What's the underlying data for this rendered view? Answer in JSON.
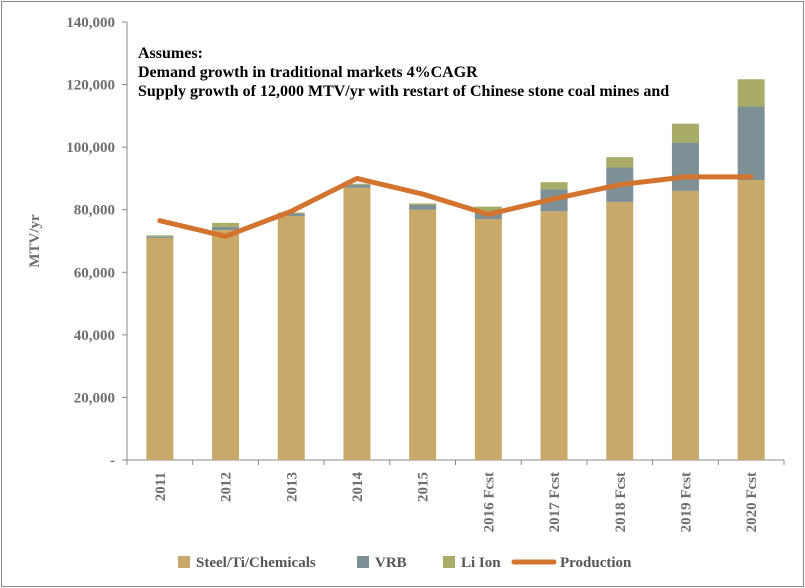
{
  "chart_data": {
    "type": "bar",
    "stacked": true,
    "categories": [
      "2011",
      "2012",
      "2013",
      "2014",
      "2015",
      "2016 Fcst",
      "2017 Fcst",
      "2018 Fcst",
      "2019 Fcst",
      "2020 Fcst"
    ],
    "series": [
      {
        "name": "Steel/Ti/Chemicals",
        "type": "bar",
        "color": "#C9A96A",
        "values": [
          71000,
          73500,
          78000,
          87000,
          80000,
          77000,
          79500,
          82500,
          86000,
          89500
        ]
      },
      {
        "name": "VRB",
        "type": "bar",
        "color": "#7C9096",
        "values": [
          500,
          1000,
          800,
          1000,
          1500,
          2500,
          7000,
          11000,
          15500,
          23500
        ]
      },
      {
        "name": "Li Ion",
        "type": "bar",
        "color": "#A8AC66",
        "values": [
          300,
          1300,
          300,
          300,
          500,
          1500,
          2300,
          3300,
          6000,
          8700
        ]
      },
      {
        "name": "Production",
        "type": "line",
        "color": "#D2732E",
        "values": [
          76500,
          71500,
          79500,
          90000,
          85000,
          78500,
          83500,
          88000,
          90500,
          90500
        ]
      }
    ],
    "ylabel": "MTV/yr",
    "xlabel": "",
    "ylim": [
      0,
      140000
    ],
    "yticks": [
      {
        "value": 0,
        "label": "-"
      },
      {
        "value": 20000,
        "label": "20,000"
      },
      {
        "value": 40000,
        "label": "40,000"
      },
      {
        "value": 60000,
        "label": "60,000"
      },
      {
        "value": 80000,
        "label": "80,000"
      },
      {
        "value": 100000,
        "label": "100,000"
      },
      {
        "value": 120000,
        "label": "120,000"
      },
      {
        "value": 140000,
        "label": "140,000"
      }
    ],
    "annotations": [
      "Assumes:",
      "Demand growth in traditional markets 4%CAGR",
      "Supply growth of 12,000 MTV/yr with restart of Chinese stone coal mines and"
    ],
    "grid": false,
    "legend": "bottom"
  }
}
